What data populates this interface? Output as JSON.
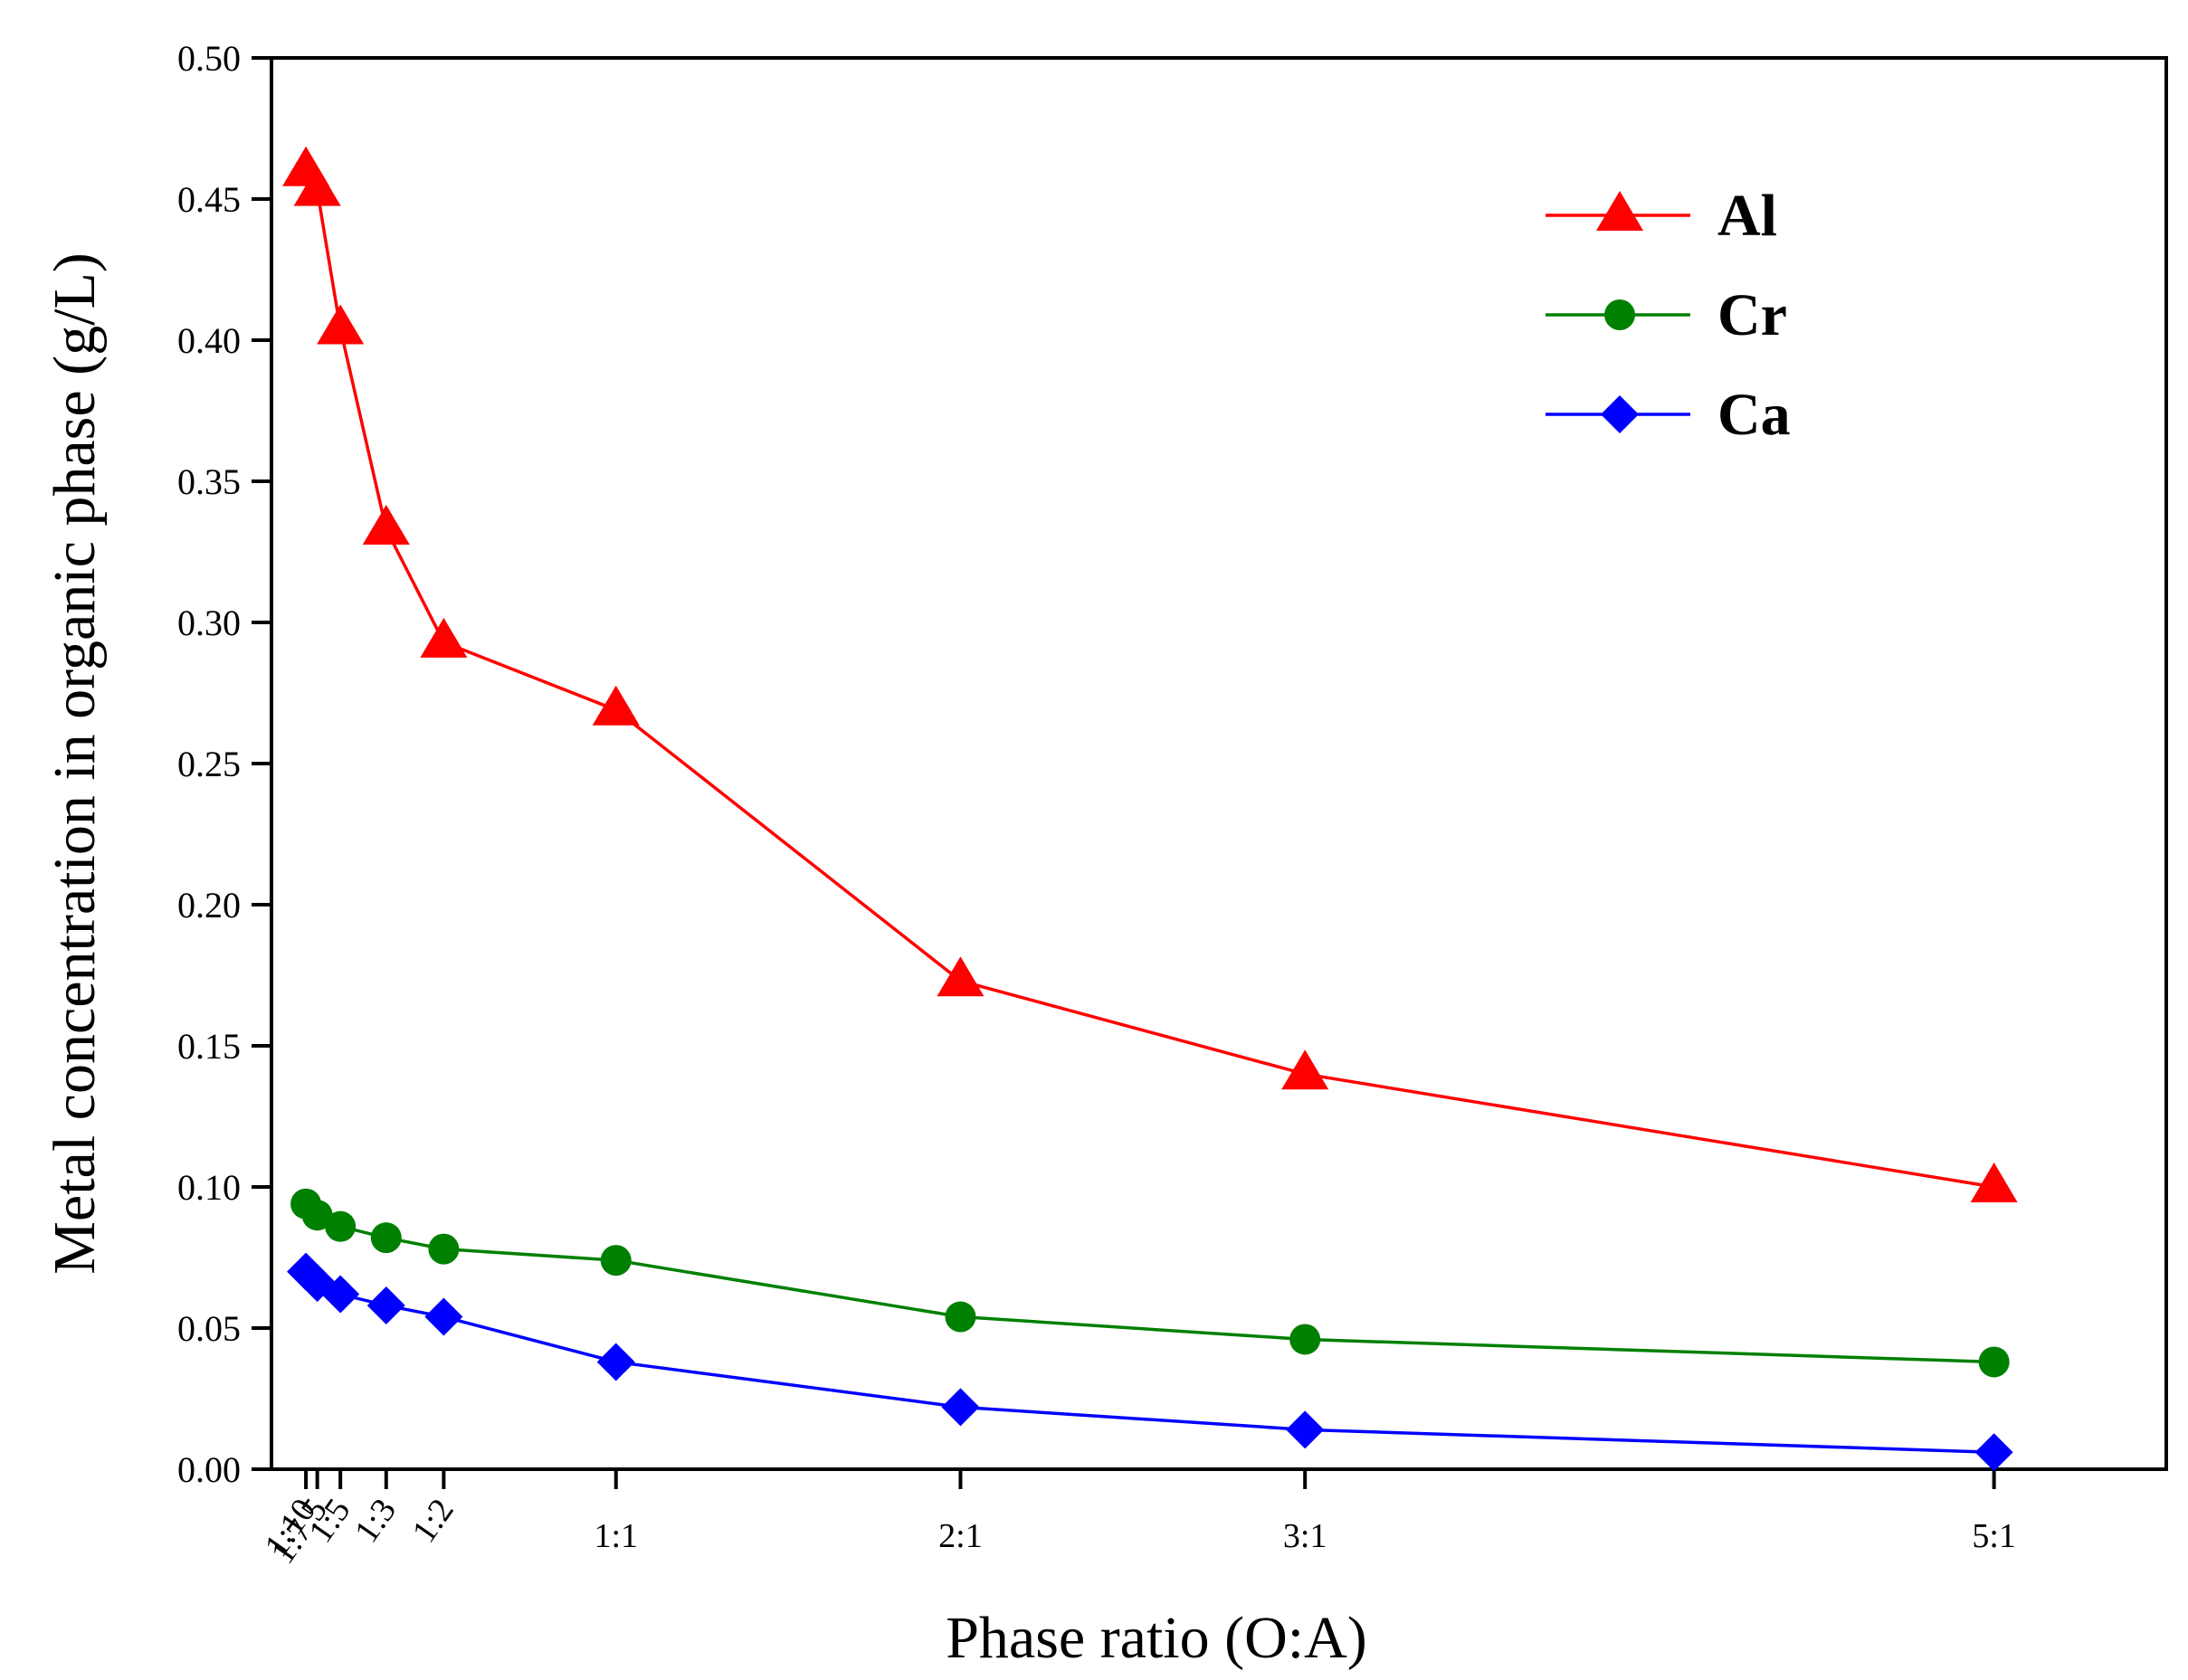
{
  "chart_data": {
    "type": "line",
    "title": "",
    "xlabel": "Phase ratio (O:A)",
    "ylabel": "Metal concentration in organic phase (g/L)",
    "ylim": [
      0,
      0.5
    ],
    "y_ticks": [
      0.0,
      0.05,
      0.1,
      0.15,
      0.2,
      0.25,
      0.3,
      0.35,
      0.4,
      0.45,
      0.5
    ],
    "y_tick_labels": [
      "0.00",
      "0.05",
      "0.10",
      "0.15",
      "0.20",
      "0.25",
      "0.30",
      "0.35",
      "0.40",
      "0.45",
      "0.50"
    ],
    "xlim": [
      0,
      5.5
    ],
    "x": [
      0.1,
      0.133,
      0.2,
      0.333,
      0.5,
      1,
      2,
      3,
      5
    ],
    "x_tick_labels": [
      "1:10",
      "1:7.5",
      "1:5",
      "1:3",
      "1:2",
      "1:1",
      "2:1",
      "3:1",
      "5:1"
    ],
    "legend_position": "top-right",
    "series": [
      {
        "name": "Al",
        "color": "#ff0000",
        "marker": "triangle",
        "values": [
          0.46,
          0.453,
          0.404,
          0.333,
          0.293,
          0.269,
          0.173,
          0.14,
          0.1
        ]
      },
      {
        "name": "Cr",
        "color": "#008000",
        "marker": "circle",
        "values": [
          0.094,
          0.09,
          0.086,
          0.082,
          0.078,
          0.074,
          0.054,
          0.046,
          0.038
        ]
      },
      {
        "name": "Ca",
        "color": "#0000ff",
        "marker": "diamond",
        "values": [
          0.07,
          0.066,
          0.062,
          0.058,
          0.054,
          0.038,
          0.022,
          0.014,
          0.006
        ]
      }
    ]
  }
}
